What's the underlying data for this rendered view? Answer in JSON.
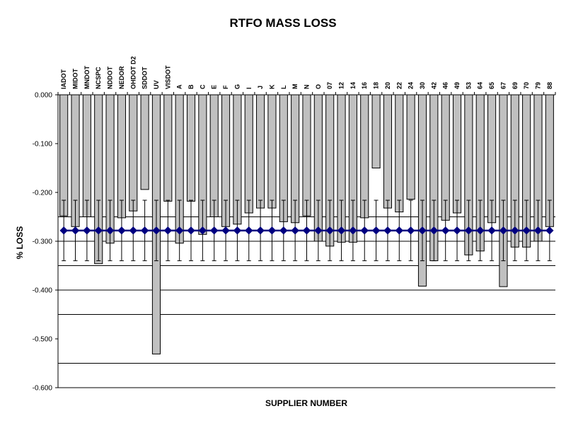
{
  "chart_data": {
    "type": "bar",
    "title": "RTFO MASS LOSS",
    "xlabel": "SUPPLIER NUMBER",
    "ylabel": "% LOSS",
    "ylim": [
      -0.6,
      0.0
    ],
    "yticks": [
      0.0,
      -0.1,
      -0.2,
      -0.3,
      -0.4,
      -0.5,
      -0.6
    ],
    "ytick_labels": [
      "0.000",
      "-0.100",
      "-0.200",
      "-0.300",
      "-0.400",
      "-0.500",
      "-0.600"
    ],
    "grid_y": [
      -0.25,
      -0.3,
      -0.35,
      -0.4,
      -0.45,
      -0.55
    ],
    "categories": [
      "IADOT",
      "MIDOT",
      "MNDOT",
      "NCSPC",
      "NDDOT",
      "NEDOR",
      "OHDOT D2",
      "SDDOT",
      "UV",
      "VISDOT",
      "A",
      "B",
      "C",
      "E",
      "F",
      "G",
      "I",
      "J",
      "K",
      "L",
      "M",
      "N",
      "O",
      "07",
      "12",
      "14",
      "16",
      "18",
      "20",
      "22",
      "24",
      "30",
      "42",
      "46",
      "49",
      "53",
      "64",
      "65",
      "67",
      "69",
      "70",
      "79",
      "88"
    ],
    "values": [
      -0.248,
      -0.27,
      -0.25,
      -0.346,
      -0.304,
      -0.252,
      -0.238,
      -0.194,
      -0.531,
      -0.218,
      -0.304,
      -0.218,
      -0.286,
      -0.25,
      -0.27,
      -0.265,
      -0.242,
      -0.232,
      -0.232,
      -0.26,
      -0.262,
      -0.248,
      -0.3,
      -0.31,
      -0.302,
      -0.302,
      -0.252,
      -0.15,
      -0.232,
      -0.24,
      -0.214,
      -0.392,
      -0.34,
      -0.257,
      -0.242,
      -0.328,
      -0.32,
      -0.262,
      -0.393,
      -0.312,
      -0.312,
      -0.3,
      -0.27
    ],
    "mean": -0.278,
    "error": 0.062,
    "colors": {
      "bar_fill": "#c0c0c0",
      "bar_stroke": "#000000",
      "mean_line": "#000080",
      "marker": "#000080"
    }
  }
}
